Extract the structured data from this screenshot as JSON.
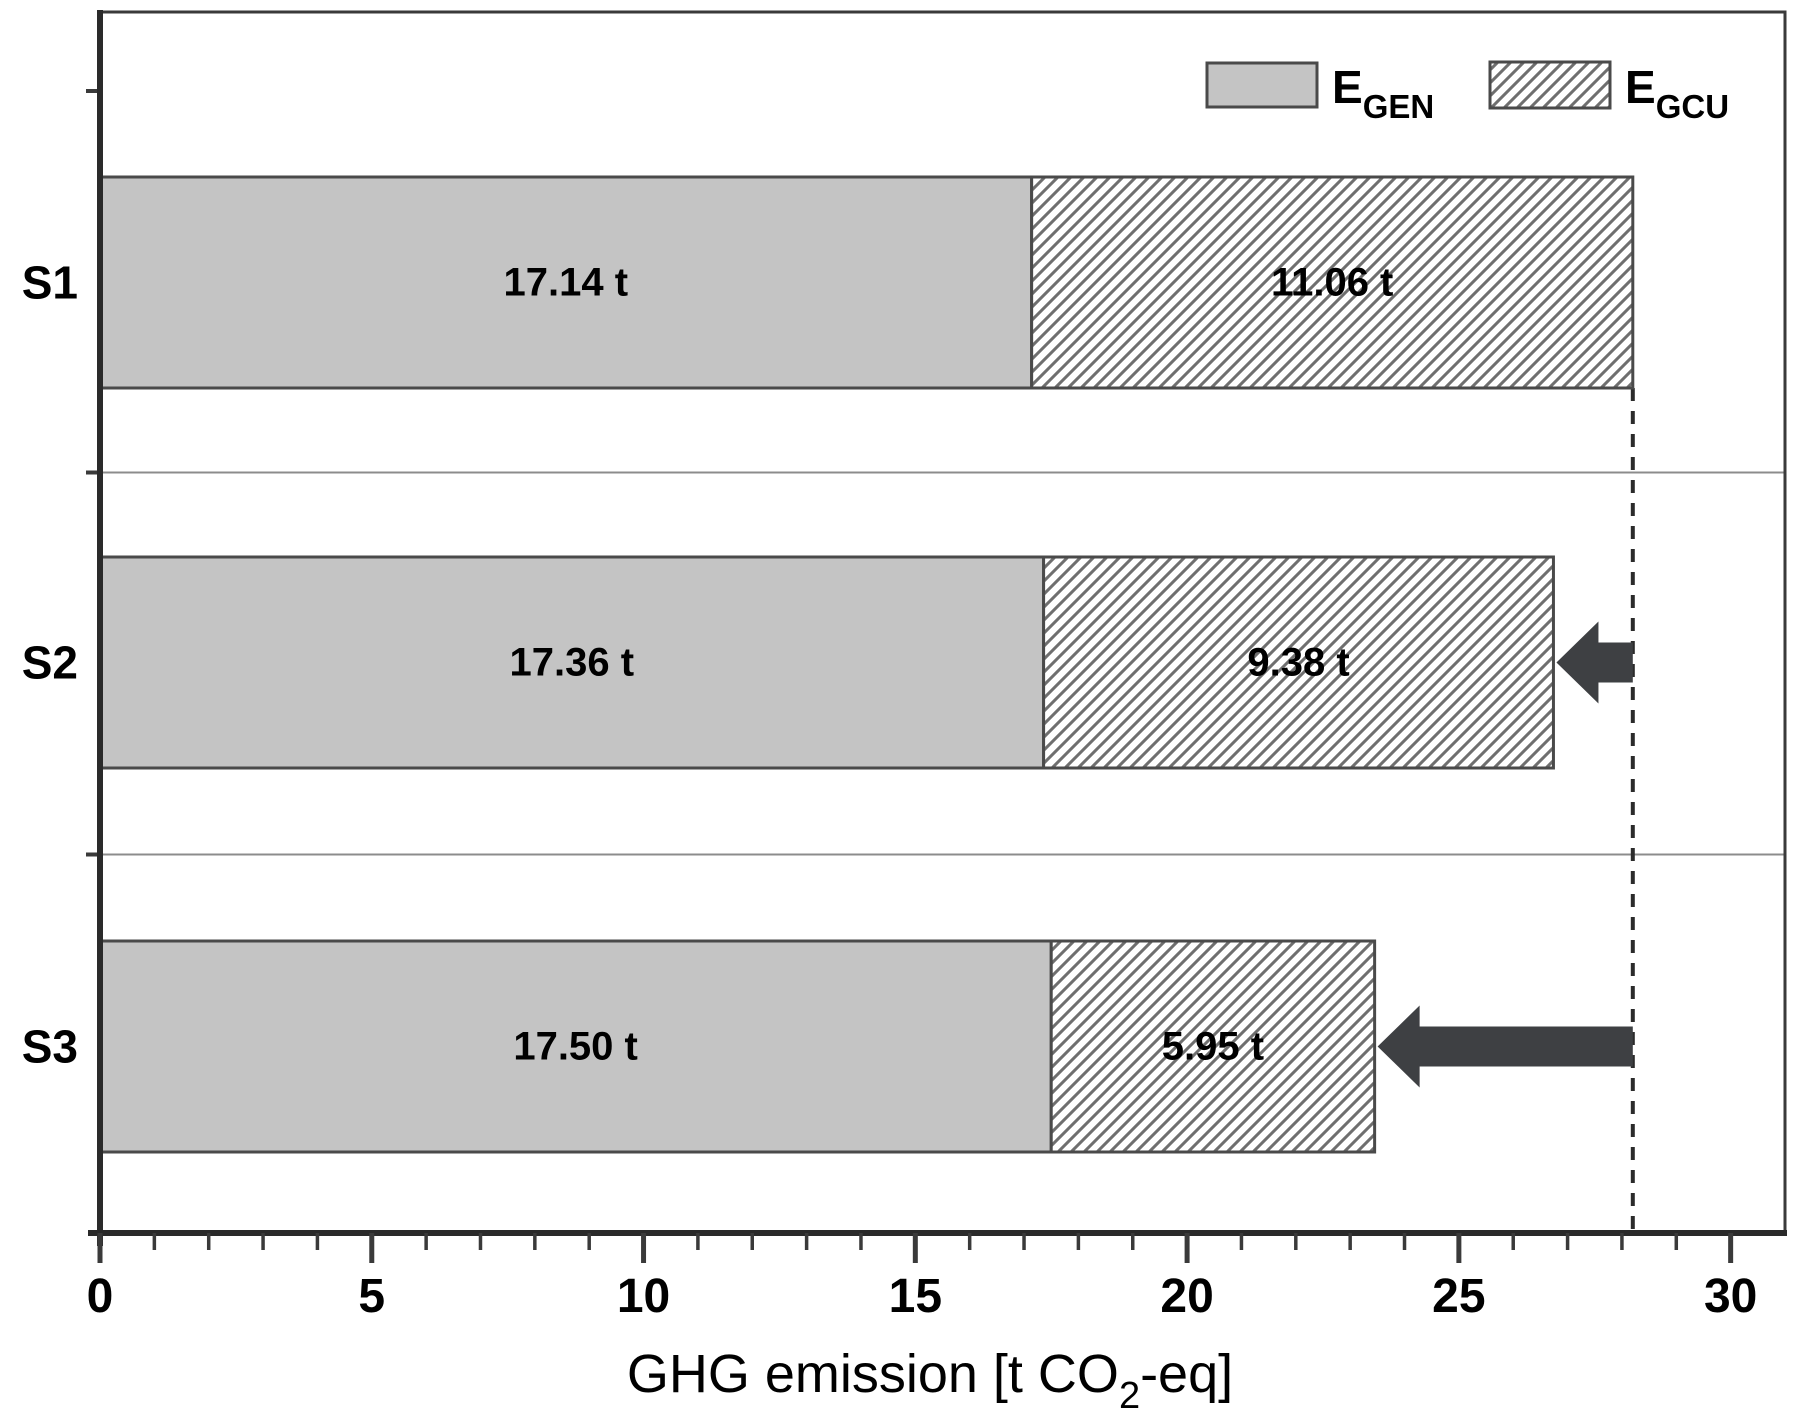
{
  "page": {
    "background": "#ffffff"
  },
  "chart_data": {
    "type": "bar",
    "orientation": "horizontal",
    "stacked": true,
    "title": "",
    "categories": [
      "S1",
      "S2",
      "S3"
    ],
    "series": [
      {
        "name": "E_GEN",
        "swatch": "solid-gray",
        "values": [
          17.14,
          17.36,
          17.5
        ],
        "labels": [
          "17.14 t",
          "17.36 t",
          "17.50 t"
        ]
      },
      {
        "name": "E_GCU",
        "swatch": "hatched",
        "values": [
          11.06,
          9.38,
          5.95
        ],
        "labels": [
          "11.06 t",
          "9.38 t",
          "5.95 t"
        ]
      }
    ],
    "totals": [
      28.2,
      26.74,
      23.45
    ],
    "xlabel_plain": "GHG emission [t CO2-eq]",
    "xlabel_parts": {
      "pre": "GHG emission [t CO",
      "sub": "2",
      "post": "-eq]"
    },
    "ylabel": "",
    "xlim": [
      0,
      31
    ],
    "x_major_ticks": [
      0,
      5,
      10,
      15,
      20,
      25,
      30
    ],
    "x_minor_step": 1,
    "grid": "category-dividers-only",
    "reference_line_x": 28.2,
    "reference_line_style": "dashed",
    "arrows": [
      {
        "category": "S2",
        "from_x": 28.2,
        "to_x": 26.74,
        "direction": "left"
      },
      {
        "category": "S3",
        "from_x": 28.2,
        "to_x": 23.45,
        "direction": "left"
      }
    ],
    "legend": {
      "position": "top-right",
      "items": [
        {
          "label_main": "E",
          "label_sub": "GEN",
          "swatch": "solid-gray"
        },
        {
          "label_main": "E",
          "label_sub": "GCU",
          "swatch": "hatched"
        }
      ]
    },
    "colors": {
      "bar_fill": "#c4c4c4",
      "bar_border": "#4a4a4a",
      "hatch_line": "#6f6f6f",
      "hatch_bg": "#ffffff",
      "axis": "#3a3a3a",
      "grid_line": "#8c8c8c",
      "reference_line": "#2b2b2b",
      "arrow_fill": "#3e4043",
      "text": "#000000"
    }
  }
}
